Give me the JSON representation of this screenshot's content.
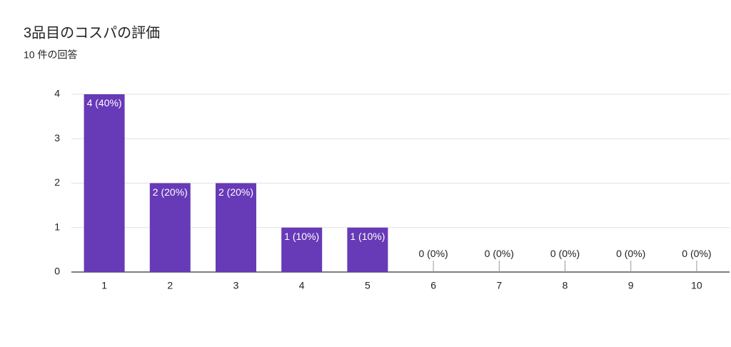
{
  "chart_data": {
    "type": "bar",
    "title": "3品目のコスパの評価",
    "subtitle": "10 件の回答",
    "categories": [
      "1",
      "2",
      "3",
      "4",
      "5",
      "6",
      "7",
      "8",
      "9",
      "10"
    ],
    "values": [
      4,
      2,
      2,
      1,
      1,
      0,
      0,
      0,
      0,
      0
    ],
    "value_labels": [
      "4 (40%)",
      "2 (20%)",
      "2 (20%)",
      "1 (10%)",
      "1 (10%)",
      "0 (0%)",
      "0 (0%)",
      "0 (0%)",
      "0 (0%)",
      "0 (0%)"
    ],
    "color": "#673ab7",
    "ylim": [
      0,
      4
    ],
    "yticks": [
      0,
      1,
      2,
      3,
      4
    ],
    "grid": true
  }
}
